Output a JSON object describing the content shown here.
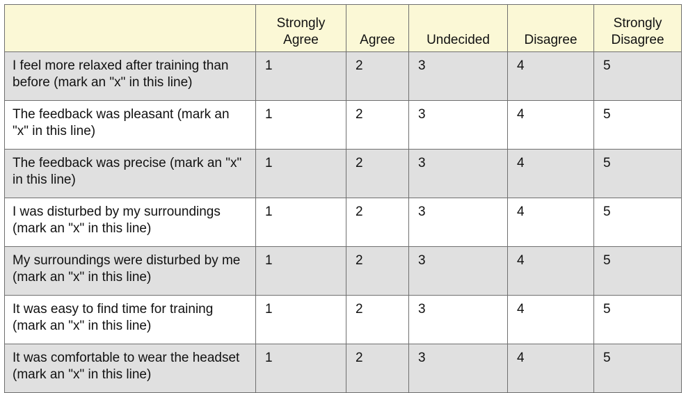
{
  "headers": [
    "",
    "Strongly Agree",
    "Agree",
    "Undecided",
    "Disagree",
    "Strongly Disagree"
  ],
  "rows": [
    {
      "statement": "I feel more relaxed after training than before (mark an \"x\" in this line)",
      "options": [
        "1",
        "2",
        "3",
        "4",
        "5"
      ]
    },
    {
      "statement": "The feedback was pleasant (mark an \"x\" in this line)",
      "options": [
        "1",
        "2",
        "3",
        "4",
        "5"
      ]
    },
    {
      "statement": "The feedback was precise (mark an \"x\" in this line)",
      "options": [
        "1",
        "2",
        "3",
        "4",
        "5"
      ]
    },
    {
      "statement": "I was disturbed by my surroundings (mark an \"x\" in this line)",
      "options": [
        "1",
        "2",
        "3",
        "4",
        "5"
      ]
    },
    {
      "statement": "My surroundings were disturbed by me (mark an \"x\" in this line)",
      "options": [
        "1",
        "2",
        "3",
        "4",
        "5"
      ]
    },
    {
      "statement": "It was easy to find time for training (mark an \"x\" in this line)",
      "options": [
        "1",
        "2",
        "3",
        "4",
        "5"
      ]
    },
    {
      "statement": "It was comfortable to wear the headset (mark an \"x\" in this line)",
      "options": [
        "1",
        "2",
        "3",
        "4",
        "5"
      ]
    }
  ],
  "colors": {
    "header_background": "#fbf8d6",
    "shaded_row": "#e0e0e0",
    "plain_row": "#ffffff",
    "border": "#6f6f6f"
  }
}
